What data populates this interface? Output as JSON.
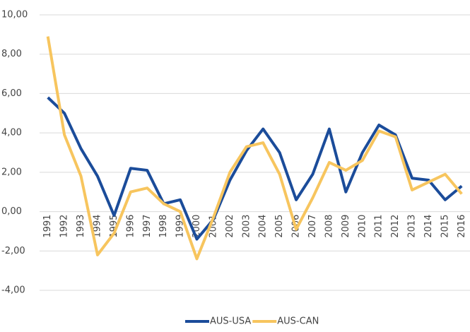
{
  "chart_data": {
    "type": "line",
    "categories": [
      "1991",
      "1992",
      "1993",
      "1994",
      "1995",
      "1996",
      "1997",
      "1998",
      "1999",
      "2000",
      "2001",
      "2002",
      "2003",
      "2004",
      "2005",
      "2006",
      "2007",
      "2008",
      "2009",
      "2010",
      "2011",
      "2012",
      "2013",
      "2014",
      "2015",
      "2016"
    ],
    "series": [
      {
        "name": "AUS-USA",
        "color": "#1b4c9a",
        "values": [
          5.8,
          5.0,
          3.2,
          1.8,
          -0.2,
          2.2,
          2.1,
          0.4,
          0.6,
          -1.4,
          -0.4,
          1.6,
          3.1,
          4.2,
          3.0,
          0.6,
          1.9,
          4.2,
          1.0,
          3.0,
          4.4,
          3.9,
          1.7,
          1.6,
          0.6,
          1.3
        ]
      },
      {
        "name": "AUS-CAN",
        "color": "#f7c55e",
        "values": [
          8.9,
          3.9,
          1.8,
          -2.2,
          -1.1,
          1.0,
          1.2,
          0.4,
          0.0,
          -2.4,
          -0.3,
          2.0,
          3.3,
          3.5,
          1.9,
          -0.9,
          0.7,
          2.5,
          2.1,
          2.6,
          4.1,
          3.8,
          1.1,
          1.5,
          1.9,
          0.9
        ]
      }
    ],
    "ylim": [
      -4,
      10
    ],
    "yticks": [
      {
        "value": -4,
        "label": "-4,00"
      },
      {
        "value": -2,
        "label": "-2,00"
      },
      {
        "value": 0,
        "label": "0,00"
      },
      {
        "value": 2,
        "label": "2,00"
      },
      {
        "value": 4,
        "label": "4,00"
      },
      {
        "value": 6,
        "label": "6,00"
      },
      {
        "value": 8,
        "label": "8,00"
      },
      {
        "value": 10,
        "label": "10,00"
      }
    ],
    "grid": true,
    "legend": "bottom"
  }
}
